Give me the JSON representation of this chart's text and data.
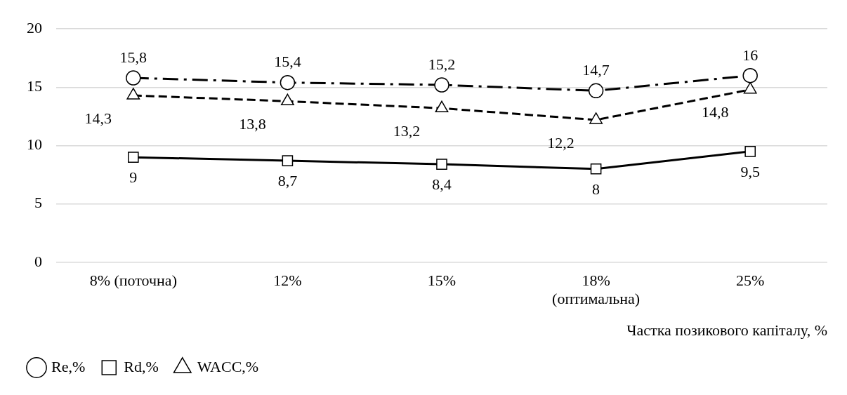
{
  "chart_data": {
    "type": "line",
    "xlabel": "Частка позикового капіталу, %",
    "categories": [
      "8% (поточна)",
      "12%",
      "15%",
      "18% (оптимальна)",
      "25%"
    ],
    "ylim": [
      0,
      20
    ],
    "yticks": [
      0,
      5,
      10,
      15,
      20
    ],
    "grid": "y",
    "legend": "bottom left",
    "series": [
      {
        "name": "Re,%",
        "color": "#000000",
        "values": [
          15.8,
          15.4,
          15.2,
          14.7,
          16
        ],
        "marker": "circle",
        "line_style": "dashdot",
        "value_labels": [
          "15,8",
          "15,4",
          "15,2",
          "14,7",
          "16"
        ]
      },
      {
        "name": "Rd,%",
        "color": "#000000",
        "values": [
          9,
          8.7,
          8.4,
          8,
          9.5
        ],
        "marker": "square",
        "line_style": "solid",
        "value_labels": [
          "9",
          "8,7",
          "8,4",
          "8",
          "9,5"
        ]
      },
      {
        "name": "WACC,%",
        "color": "#000000",
        "values": [
          14.3,
          13.8,
          13.2,
          12.2,
          14.8
        ],
        "marker": "triangle",
        "line_style": "dashed",
        "value_labels": [
          "14,3",
          "13,8",
          "13,2",
          "12,2",
          "14,8"
        ]
      }
    ]
  }
}
